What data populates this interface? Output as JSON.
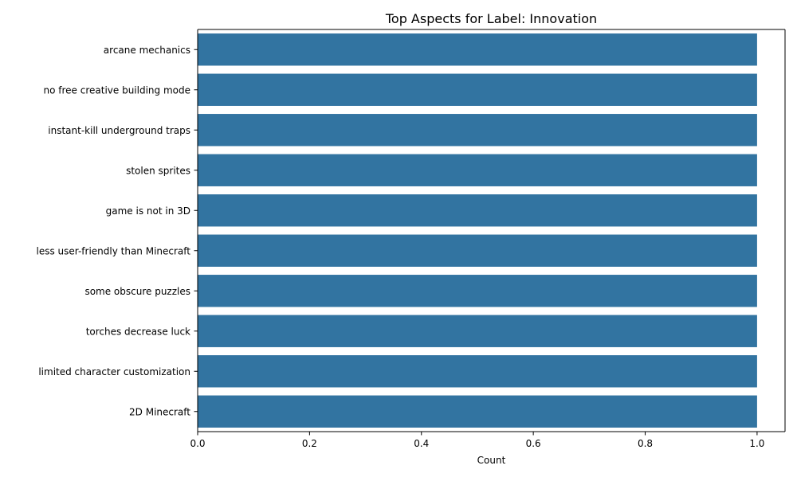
{
  "chart_data": {
    "type": "bar",
    "orientation": "horizontal",
    "title": "Top Aspects for Label: Innovation",
    "xlabel": "Count",
    "ylabel": "",
    "xlim": [
      0,
      1.05
    ],
    "xticks": [
      0.0,
      0.2,
      0.4,
      0.6,
      0.8,
      1.0
    ],
    "xtick_labels": [
      "0.0",
      "0.2",
      "0.4",
      "0.6",
      "0.8",
      "1.0"
    ],
    "categories": [
      "arcane mechanics",
      "no free creative building mode",
      "instant-kill underground traps",
      "stolen sprites",
      "game is not in 3D",
      "less user-friendly than Minecraft",
      "some obscure puzzles",
      "torches decrease luck",
      "limited character customization",
      "2D Minecraft"
    ],
    "values": [
      1,
      1,
      1,
      1,
      1,
      1,
      1,
      1,
      1,
      1
    ],
    "bar_color": "#3274a1",
    "grid": false,
    "legend": "none"
  }
}
